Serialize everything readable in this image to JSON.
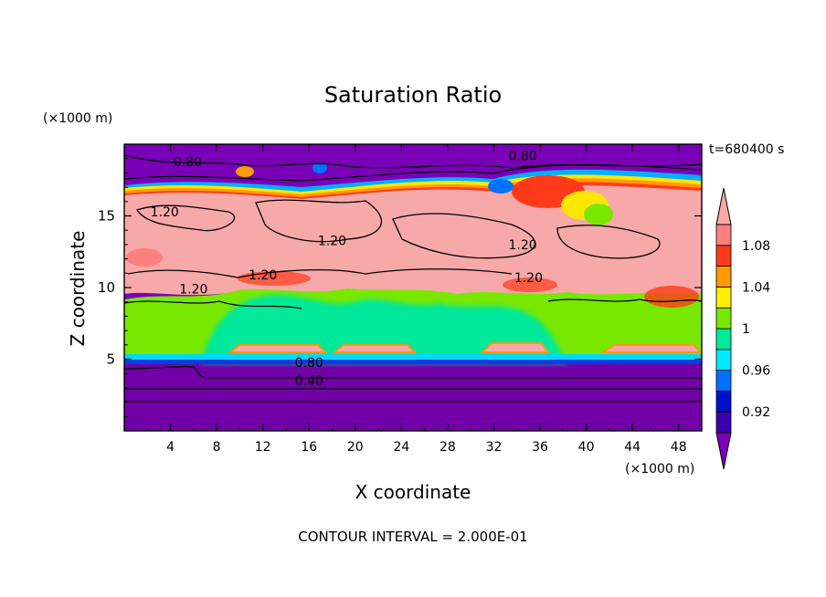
{
  "chart_data": {
    "type": "heatmap",
    "title": "Saturation Ratio",
    "xlabel": "X coordinate",
    "ylabel": "Z coordinate",
    "x_unit": "(×1000 m)",
    "y_unit": "(×1000 m)",
    "time_label": "t=680400 s",
    "footer": "CONTOUR INTERVAL = 2.000E-01",
    "xlim": [
      0,
      50
    ],
    "ylim": [
      0,
      20
    ],
    "x_ticks": [
      4,
      8,
      12,
      16,
      20,
      24,
      28,
      32,
      36,
      40,
      44,
      48
    ],
    "y_ticks": [
      5,
      10,
      15
    ],
    "colorbar": {
      "labels": [
        "1.08",
        "1.04",
        "1",
        "0.96",
        "0.92"
      ],
      "label_values": [
        1.08,
        1.04,
        1.0,
        0.96,
        0.92
      ],
      "levels": [
        0.9,
        0.92,
        0.94,
        0.96,
        0.98,
        1.0,
        1.02,
        1.04,
        1.06,
        1.08,
        1.1
      ],
      "colors": [
        "#7a00b8",
        "#3d00b0",
        "#0010c8",
        "#0070ff",
        "#00e8ff",
        "#00e89a",
        "#78e800",
        "#ffee00",
        "#ff9a00",
        "#ff3a1a",
        "#ff7f7f",
        "#f7a8a8"
      ]
    },
    "contour_labels": [
      {
        "text": "0.80",
        "x": 5.5,
        "z": 18.6
      },
      {
        "text": "0.80",
        "x": 34.5,
        "z": 19.0
      },
      {
        "text": "1.20",
        "x": 3.5,
        "z": 15.1
      },
      {
        "text": "1.20",
        "x": 18.0,
        "z": 13.1
      },
      {
        "text": "1.20",
        "x": 34.5,
        "z": 12.8
      },
      {
        "text": "1.20",
        "x": 12.0,
        "z": 10.7
      },
      {
        "text": "1.20",
        "x": 35.0,
        "z": 10.5
      },
      {
        "text": "1.20",
        "x": 6.0,
        "z": 9.7
      },
      {
        "text": "0.80",
        "x": 16.0,
        "z": 4.6
      },
      {
        "text": "0.40",
        "x": 16.0,
        "z": 3.3
      }
    ]
  }
}
